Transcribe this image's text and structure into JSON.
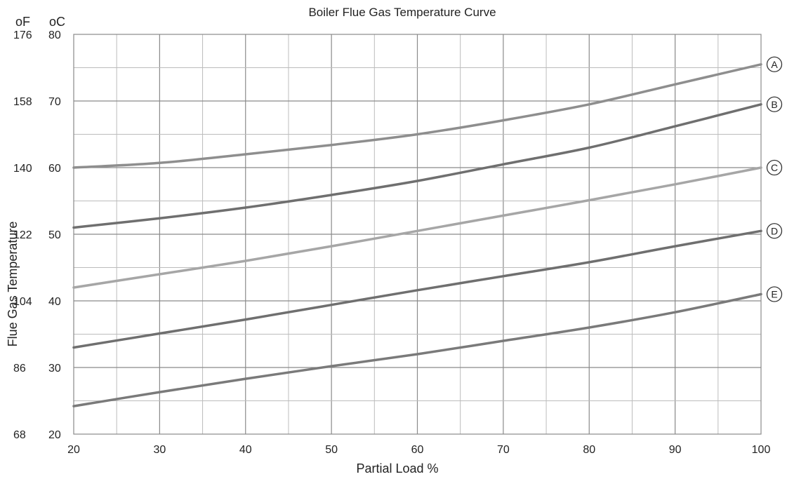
{
  "chart_data": {
    "type": "line",
    "title": "Boiler Flue Gas Temperature Curve",
    "xlabel": "Partial Load %",
    "ylabel": "Flue Gas Temperature",
    "y_units": [
      "°F",
      "°C"
    ],
    "unit_label_f": "oF",
    "unit_label_c": "oC",
    "xlim": [
      20,
      100
    ],
    "ylim": [
      20,
      80
    ],
    "x_ticks": [
      20,
      30,
      40,
      50,
      60,
      70,
      80,
      90,
      100
    ],
    "x_tick_labels": [
      "20",
      "30",
      "40",
      "50",
      "60",
      "70",
      "80",
      "90",
      "100"
    ],
    "y_ticks_c": [
      20,
      30,
      40,
      50,
      60,
      70,
      80
    ],
    "y_tick_labels_c": [
      "20",
      "30",
      "40",
      "50",
      "60",
      "70",
      "80"
    ],
    "y_tick_labels_f": [
      "68",
      "86",
      "104",
      "122",
      "140",
      "158",
      "176"
    ],
    "grid": true,
    "x": [
      20,
      30,
      40,
      50,
      60,
      70,
      80,
      90,
      100
    ],
    "series": [
      {
        "name": "A",
        "color": "#8e8e8e",
        "values": [
          60.0,
          60.7,
          62.0,
          63.4,
          65.0,
          67.1,
          69.5,
          72.5,
          75.5
        ]
      },
      {
        "name": "B",
        "color": "#6f6f6f",
        "values": [
          51.0,
          52.4,
          54.0,
          55.9,
          58.0,
          60.5,
          63.0,
          66.2,
          69.5
        ]
      },
      {
        "name": "C",
        "color": "#a6a6a6",
        "values": [
          42.0,
          44.0,
          46.0,
          48.2,
          50.5,
          52.8,
          55.1,
          57.5,
          60.0
        ]
      },
      {
        "name": "D",
        "color": "#6f6f6f",
        "values": [
          33.0,
          35.1,
          37.2,
          39.4,
          41.6,
          43.7,
          45.8,
          48.2,
          50.5
        ]
      },
      {
        "name": "E",
        "color": "#7a7a7a",
        "values": [
          24.2,
          26.3,
          28.3,
          30.2,
          32.0,
          34.0,
          36.0,
          38.3,
          41.0
        ]
      }
    ]
  }
}
